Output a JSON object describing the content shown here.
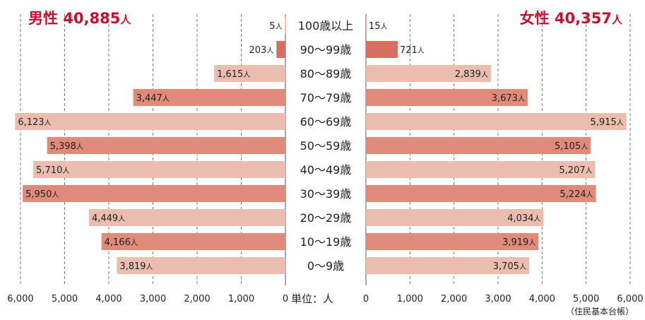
{
  "chart_data": {
    "type": "bar",
    "orientation": "horizontal-butterfly",
    "categories": [
      "100歳以上",
      "90〜99歳",
      "80〜89歳",
      "70〜79歳",
      "60〜69歳",
      "50〜59歳",
      "40〜49歳",
      "30〜39歳",
      "20〜29歳",
      "10〜19歳",
      "0〜9歳"
    ],
    "series": [
      {
        "name": "男性",
        "values": [
          5,
          203,
          1615,
          3447,
          6123,
          5398,
          5710,
          5950,
          4449,
          4166,
          3819
        ]
      },
      {
        "name": "女性",
        "values": [
          15,
          721,
          2839,
          3673,
          5915,
          5105,
          5207,
          5224,
          4034,
          3919,
          3705
        ]
      }
    ],
    "value_unit": "人",
    "xlim": [
      0,
      6000
    ],
    "x_ticks": [
      "6,000",
      "5,000",
      "4,000",
      "3,000",
      "2,000",
      "1,000",
      "0"
    ],
    "x_ticks_right": [
      "0",
      "1,000",
      "2,000",
      "3,000",
      "4,000",
      "5,000",
      "6,000"
    ],
    "grid": "vertical-dashed",
    "axis_unit_label": "単位：人",
    "source_note": "（住民基本台帳）",
    "totals": {
      "male_label": "男性",
      "male_value": "40,885",
      "female_label": "女性",
      "female_value": "40,357",
      "unit": "人"
    },
    "colors": {
      "bar_dark": "#e08a79",
      "bar_light": "#ebbdaf",
      "bar_dark_90": "#d9705f",
      "total_text": "#c8102e",
      "grid": "#555555"
    }
  }
}
